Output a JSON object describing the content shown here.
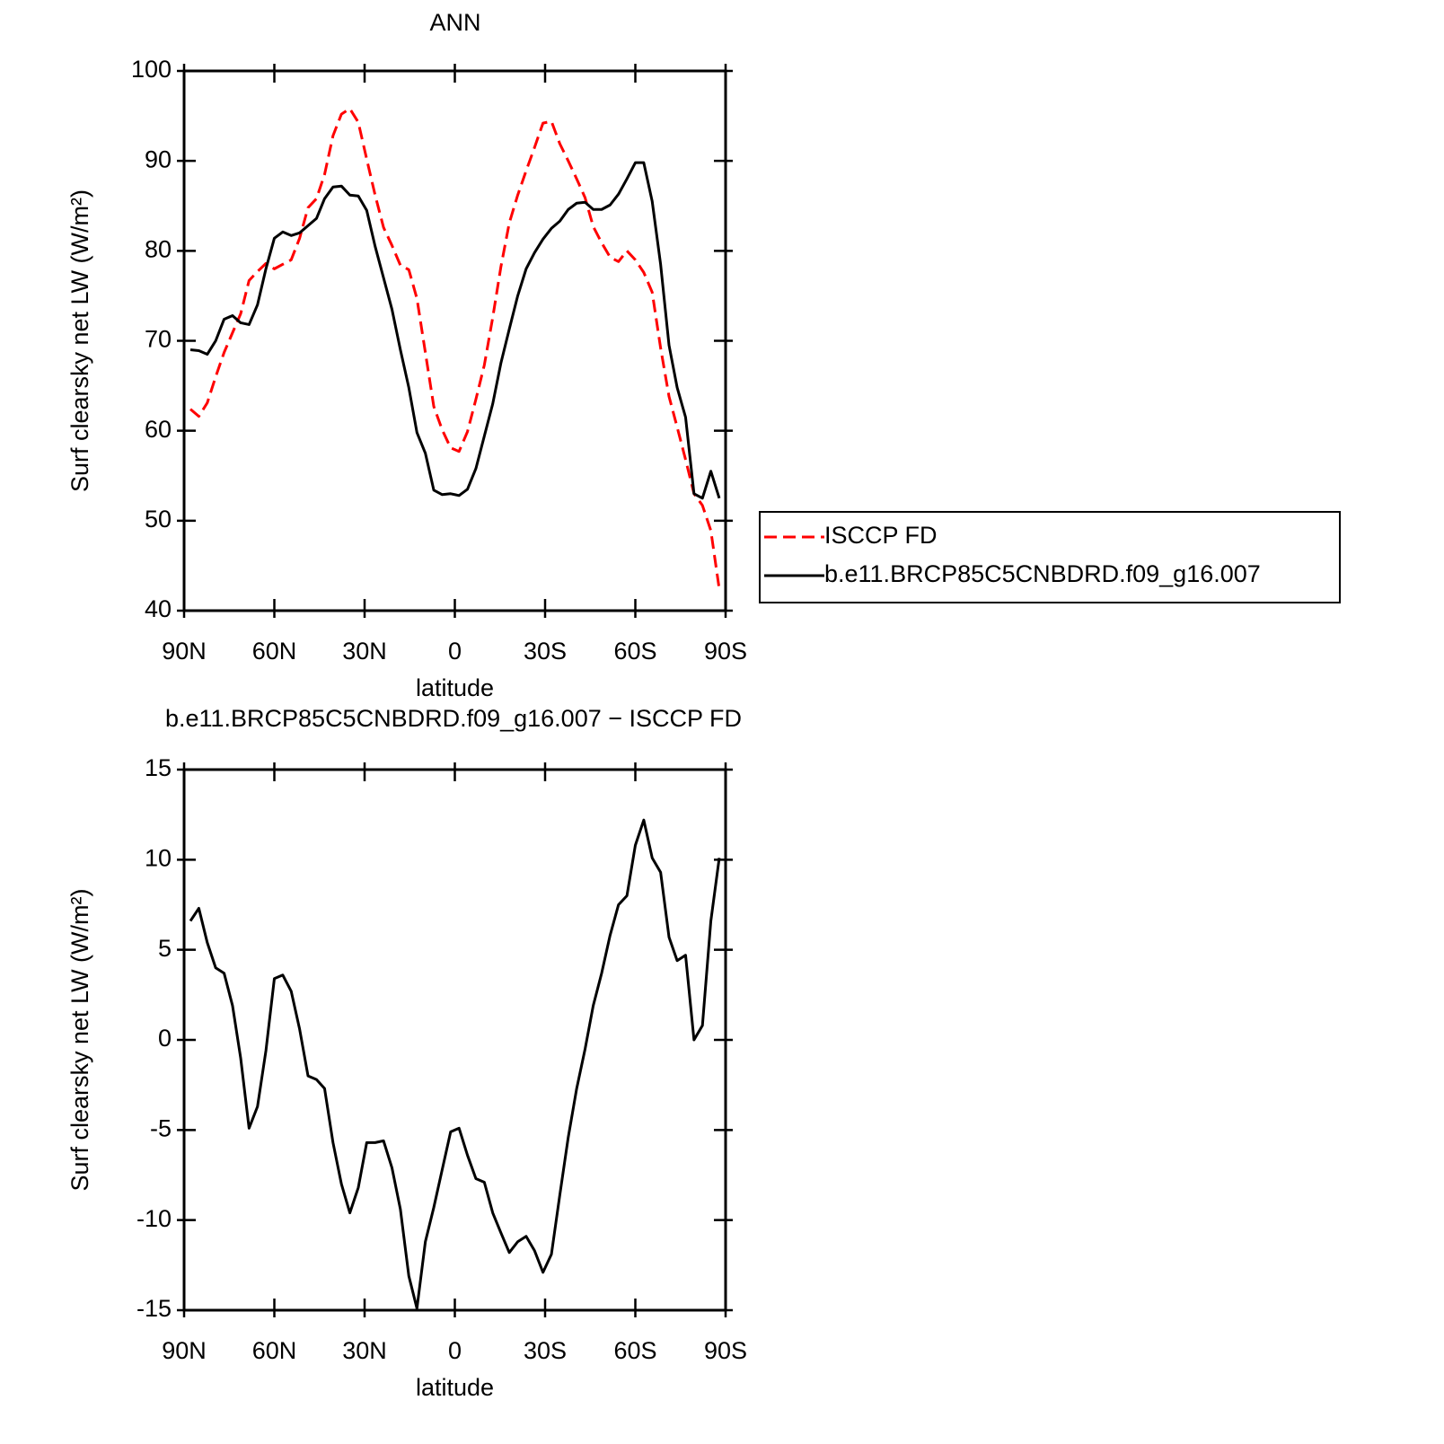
{
  "chart_data": [
    {
      "type": "line",
      "title": "ANN",
      "x_label": "latitude",
      "y_label": "Surf clearsky net LW (W/m²)",
      "x": [
        87.9,
        85.1,
        82.3,
        79.5,
        76.7,
        73.9,
        71.2,
        68.4,
        65.6,
        62.8,
        60.0,
        57.2,
        54.4,
        51.6,
        48.8,
        46.0,
        43.3,
        40.5,
        37.7,
        34.9,
        32.1,
        29.3,
        26.5,
        23.7,
        20.9,
        18.1,
        15.3,
        12.6,
        9.8,
        7.0,
        4.2,
        1.4,
        -1.4,
        -4.2,
        -7.0,
        -9.8,
        -12.6,
        -15.3,
        -18.1,
        -20.9,
        -23.7,
        -26.5,
        -29.3,
        -32.1,
        -34.9,
        -37.7,
        -40.5,
        -43.3,
        -46.0,
        -48.8,
        -51.6,
        -54.4,
        -57.2,
        -60.0,
        -62.8,
        -65.6,
        -68.4,
        -71.2,
        -73.9,
        -76.7,
        -79.5,
        -82.3,
        -85.1,
        -87.9
      ],
      "series": [
        {
          "name": "ISCCP FD",
          "color": "#ff0000",
          "line_style": "dashed",
          "values": [
            62.4,
            61.6,
            63.1,
            66.0,
            68.7,
            70.9,
            73.0,
            76.7,
            77.7,
            78.6,
            78.0,
            78.5,
            79.0,
            81.4,
            84.8,
            85.8,
            88.5,
            92.8,
            95.2,
            95.8,
            94.3,
            90.2,
            86.2,
            82.6,
            80.6,
            78.4,
            77.9,
            74.7,
            68.7,
            62.7,
            60.1,
            58.1,
            57.7,
            59.9,
            63.5,
            67.3,
            72.6,
            78.2,
            83.1,
            86.2,
            88.9,
            91.5,
            94.2,
            94.4,
            91.9,
            90.0,
            88.0,
            85.9,
            82.7,
            80.9,
            79.3,
            78.8,
            80.0,
            79.0,
            77.6,
            75.4,
            69.2,
            63.8,
            60.4,
            56.8,
            53.0,
            51.7,
            48.9,
            42.4
          ]
        },
        {
          "name": "b.e11.BRCP85C5CNBDRD.f09_g16.007",
          "color": "#000000",
          "line_style": "solid",
          "values": [
            69.0,
            68.9,
            68.5,
            70.0,
            72.4,
            72.8,
            72.0,
            71.8,
            74.0,
            78.0,
            81.4,
            82.1,
            81.7,
            82.0,
            82.8,
            83.6,
            85.8,
            87.1,
            87.2,
            86.2,
            86.1,
            84.5,
            80.5,
            77.0,
            73.5,
            69.0,
            64.8,
            59.8,
            57.5,
            53.4,
            52.9,
            53.0,
            52.8,
            53.5,
            55.8,
            59.4,
            63.0,
            67.5,
            71.3,
            75.0,
            78.0,
            79.8,
            81.3,
            82.5,
            83.3,
            84.6,
            85.3,
            85.4,
            84.6,
            84.6,
            85.1,
            86.3,
            88.0,
            89.8,
            89.8,
            85.5,
            78.5,
            69.5,
            64.8,
            61.5,
            53.0,
            52.5,
            55.5,
            52.5
          ]
        }
      ],
      "xlim": [
        90,
        -90
      ],
      "xticks": [
        {
          "value": 90,
          "label": "90N"
        },
        {
          "value": 60,
          "label": "60N"
        },
        {
          "value": 30,
          "label": "30N"
        },
        0,
        {
          "value": -30,
          "label": "30S"
        },
        {
          "value": -60,
          "label": "60S"
        },
        {
          "value": -90,
          "label": "90S"
        }
      ],
      "ylim": [
        40,
        100
      ],
      "yticks": [
        40,
        50,
        60,
        70,
        80,
        90,
        100
      ],
      "legend": "outside right"
    },
    {
      "type": "line",
      "title": "b.e11.BRCP85C5CNBDRD.f09_g16.007 − ISCCP FD",
      "x_label": "latitude",
      "y_label": "Surf clearsky net LW (W/m²)",
      "x": [
        87.9,
        85.1,
        82.3,
        79.5,
        76.7,
        73.9,
        71.2,
        68.4,
        65.6,
        62.8,
        60.0,
        57.2,
        54.4,
        51.6,
        48.8,
        46.0,
        43.3,
        40.5,
        37.7,
        34.9,
        32.1,
        29.3,
        26.5,
        23.7,
        20.9,
        18.1,
        15.3,
        12.6,
        9.8,
        7.0,
        4.2,
        1.4,
        -1.4,
        -4.2,
        -7.0,
        -9.8,
        -12.6,
        -15.3,
        -18.1,
        -20.9,
        -23.7,
        -26.5,
        -29.3,
        -32.1,
        -34.9,
        -37.7,
        -40.5,
        -43.3,
        -46.0,
        -48.8,
        -51.6,
        -54.4,
        -57.2,
        -60.0,
        -62.8,
        -65.6,
        -68.4,
        -71.2,
        -73.9,
        -76.7,
        -79.5,
        -82.3,
        -85.1,
        -87.9
      ],
      "values": [
        6.6,
        7.3,
        5.4,
        4.0,
        3.7,
        1.9,
        -1.0,
        -4.9,
        -3.7,
        -0.6,
        3.4,
        3.6,
        2.7,
        0.6,
        -2.0,
        -2.2,
        -2.7,
        -5.7,
        -8.0,
        -9.6,
        -8.2,
        -5.7,
        -5.7,
        -5.6,
        -7.1,
        -9.4,
        -13.1,
        -14.9,
        -11.2,
        -9.3,
        -7.2,
        -5.1,
        -4.9,
        -6.4,
        -7.7,
        -7.9,
        -9.6,
        -10.7,
        -11.8,
        -11.2,
        -10.9,
        -11.7,
        -12.9,
        -11.9,
        -8.6,
        -5.4,
        -2.7,
        -0.5,
        1.9,
        3.7,
        5.8,
        7.5,
        8.0,
        10.8,
        12.2,
        10.1,
        9.3,
        5.7,
        4.4,
        4.7,
        0.0,
        0.8,
        6.6,
        10.1
      ],
      "color": "#000000",
      "xlim": [
        90,
        -90
      ],
      "xticks": [
        {
          "value": 90,
          "label": "90N"
        },
        {
          "value": 60,
          "label": "60N"
        },
        {
          "value": 30,
          "label": "30N"
        },
        0,
        {
          "value": -30,
          "label": "30S"
        },
        {
          "value": -60,
          "label": "60S"
        },
        {
          "value": -90,
          "label": "90S"
        }
      ],
      "ylim": [
        -15,
        15
      ],
      "yticks": [
        -15,
        -10,
        -5,
        0,
        5,
        10,
        15
      ]
    }
  ]
}
